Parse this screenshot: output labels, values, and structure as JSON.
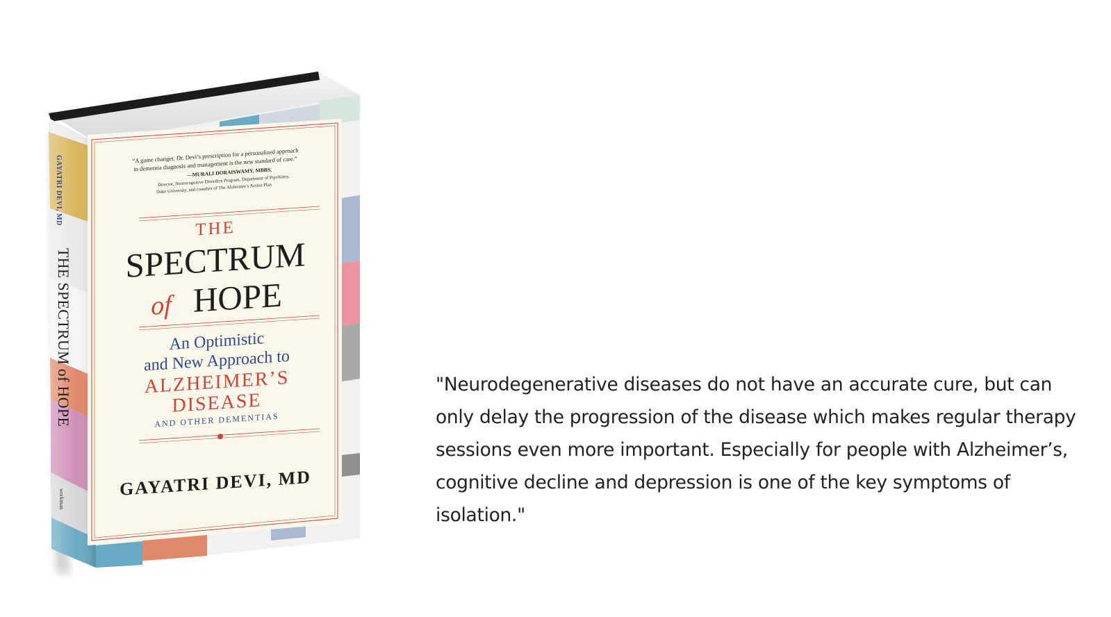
{
  "book": {
    "blurb_line1": "“A game changer. Dr. Devi’s prescription for a personalized approach",
    "blurb_line2": "to dementia diagnosis and management is the new standard of care.”",
    "endorser_name": "—MURALI DORAISWAMY, MBBS,",
    "endorser_line1": "Director, Neurocognitive Disorders Program, Department of Psychiatry,",
    "endorser_line2": "Duke University, and coauthor of The Alzheimer’s Action Plan",
    "title_the": "THE",
    "title_spectrum": "SPECTRUM",
    "title_of": "of",
    "title_hope": "HOPE",
    "subtitle_line1": "An Optimistic",
    "subtitle_line2": "and New Approach to",
    "subtitle_line3": "ALZHEIMER’S",
    "subtitle_line4": "DISEASE",
    "subtitle_line5": "AND OTHER DEMENTIAS",
    "author": "GAYATRI DEVI, MD",
    "spine_author": "GAYATRI DEVI, MD",
    "spine_title": "THE SPECTRUM of HOPE",
    "spine_publisher": "workman",
    "colors": {
      "title_red": "#c9463a",
      "title_black": "#1e1e1e",
      "subtitle_blue": "#2f4a8f",
      "cover_bg": "#fbf7ea"
    }
  },
  "quote": {
    "text": "\"Neurodegenerative diseases do not have an accurate cure, but can only delay the progression of the disease which makes regular therapy sessions even more important. Especially for people with Alzheimer’s, cognitive decline and depression is one of the key symptoms of isolation.\""
  }
}
